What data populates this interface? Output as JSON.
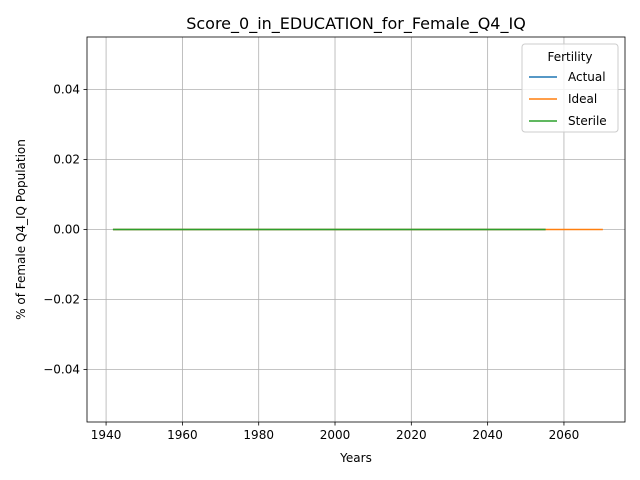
{
  "chart_data": {
    "type": "line",
    "title": "Score_0_in_EDUCATION_for_Female_Q4_IQ",
    "xlabel": "Years",
    "ylabel": "% of Female Q4_IQ Population",
    "xlim": [
      1935,
      2076
    ],
    "ylim": [
      -0.055,
      0.055
    ],
    "xticks": [
      1940,
      1960,
      1980,
      2000,
      2020,
      2040,
      2060
    ],
    "yticks": [
      -0.04,
      -0.02,
      0.0,
      0.02,
      0.04
    ],
    "ytick_labels": [
      "−0.04",
      "−0.02",
      "0.00",
      "0.02",
      "0.04"
    ],
    "grid": true,
    "legend": {
      "title": "Fertility",
      "placement": "top-right"
    },
    "series": [
      {
        "name": "Actual",
        "color": "#1f77b4",
        "x": [
          1942,
          2055
        ],
        "y": [
          0,
          0
        ]
      },
      {
        "name": "Ideal",
        "color": "#ff7f0e",
        "x": [
          1942,
          2070
        ],
        "y": [
          0,
          0
        ]
      },
      {
        "name": "Sterile",
        "color": "#2ca02c",
        "x": [
          1942,
          2055
        ],
        "y": [
          0,
          0
        ]
      }
    ]
  }
}
